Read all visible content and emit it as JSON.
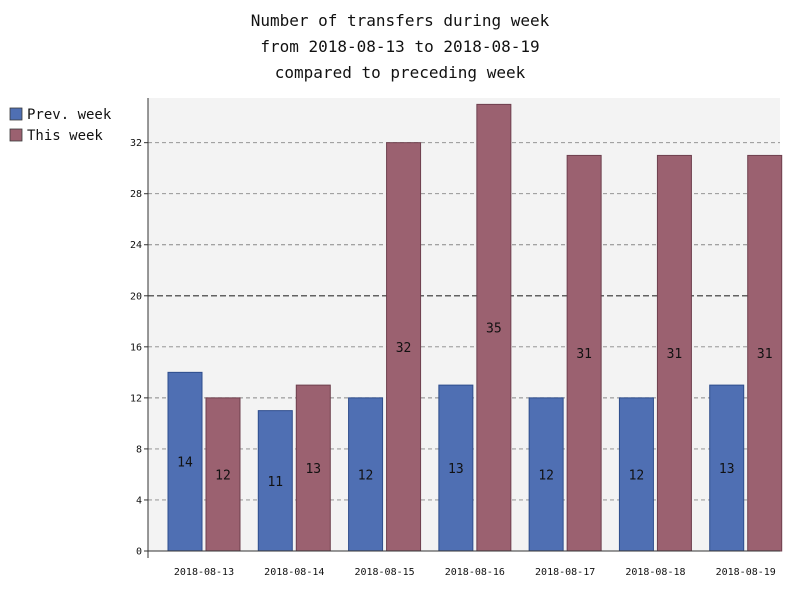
{
  "chart_data": {
    "type": "bar",
    "title": [
      "Number of transfers during week",
      "from 2018-08-13 to 2018-08-19",
      "compared to preceding week"
    ],
    "categories": [
      "2018-08-13",
      "2018-08-14",
      "2018-08-15",
      "2018-08-16",
      "2018-08-17",
      "2018-08-18",
      "2018-08-19"
    ],
    "series": [
      {
        "name": "Prev. week",
        "values": [
          14,
          11,
          12,
          13,
          12,
          12,
          13
        ],
        "color": "#4f6fb3"
      },
      {
        "name": "This week",
        "values": [
          12,
          13,
          32,
          35,
          31,
          31,
          31
        ],
        "color": "#9b6170"
      }
    ],
    "ylim": [
      0,
      35.5
    ],
    "yticks": [
      0,
      4,
      8,
      12,
      16,
      20,
      24,
      28,
      32
    ],
    "yticks_labels": [
      "0",
      "4",
      "8",
      "12",
      "16",
      "20",
      "24",
      "28",
      "32"
    ],
    "grid": true,
    "reference_line": 20,
    "legend_position": "top-left",
    "plot_background": "#f3f3f3"
  }
}
